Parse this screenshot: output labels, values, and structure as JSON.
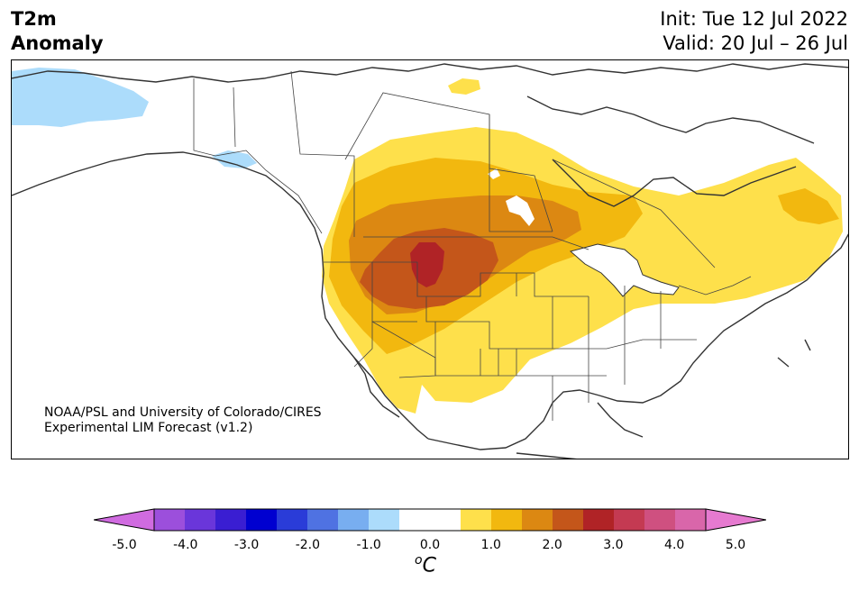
{
  "title_left": [
    "T2m",
    "Anomaly"
  ],
  "title_right": [
    "Init: Tue 12 Jul 2022",
    "Valid: 20 Jul – 26 Jul"
  ],
  "credit": [
    "NOAA/PSL and University of Colorado/CIRES",
    "Experimental LIM Forecast (v1.2)"
  ],
  "colorbar": {
    "ticks": [
      "-5.0",
      "-4.0",
      "-3.0",
      "-2.0",
      "-1.0",
      "0.0",
      "1.0",
      "2.0",
      "3.0",
      "4.0",
      "5.0"
    ],
    "unit_sup": "o",
    "unit_base": "C",
    "colors": [
      "#d06be0",
      "#9c4fdc",
      "#6a36da",
      "#3a1ed2",
      "#0000d0",
      "#2a3cd8",
      "#4f72e2",
      "#78aef0",
      "#acdcfb",
      "#ffffff",
      "#ffffff",
      "#fee04b",
      "#f2b80f",
      "#dc8812",
      "#c4561a",
      "#b02326",
      "#c43a52",
      "#cf5080",
      "#d966aa",
      "#e67ad0"
    ]
  },
  "map": {
    "anomaly_classes": {
      "cold_light": "#acdcfb",
      "warm_1": "#fee04b",
      "warm_2": "#f2b80f",
      "warm_3": "#dc8812",
      "warm_4": "#c4561a",
      "warm_5": "#b02326"
    }
  }
}
